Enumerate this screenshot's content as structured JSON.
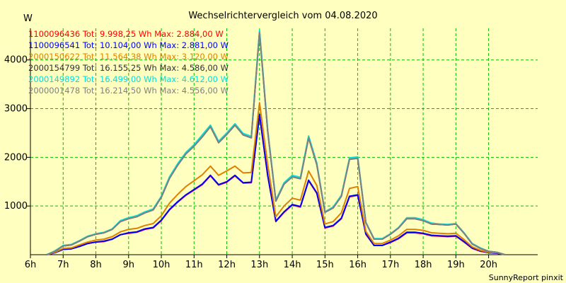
{
  "chart_data": {
    "type": "line",
    "title": "Wechselrichtervergleich vom 04.08.2020",
    "ylabel": "W",
    "xlabel": "",
    "footer": "SunnyReport pinxit",
    "ylim": [
      0,
      4650
    ],
    "xlim": [
      6,
      21.5
    ],
    "y_ticks": [
      1000,
      2000,
      3000,
      4000
    ],
    "x_ticks": [
      {
        "value": 6,
        "label": "6h"
      },
      {
        "value": 7,
        "label": "7h"
      },
      {
        "value": 8,
        "label": "8h"
      },
      {
        "value": 9,
        "label": "9h"
      },
      {
        "value": 10,
        "label": "10h"
      },
      {
        "value": 11,
        "label": "11h"
      },
      {
        "value": 12,
        "label": "12h"
      },
      {
        "value": 13,
        "label": "13h"
      },
      {
        "value": 14,
        "label": "14h"
      },
      {
        "value": 15,
        "label": "15h"
      },
      {
        "value": 16,
        "label": "16h"
      },
      {
        "value": 17,
        "label": "17h"
      },
      {
        "value": 18,
        "label": "18h"
      },
      {
        "value": 19,
        "label": "19h"
      },
      {
        "value": 20,
        "label": "20h"
      }
    ],
    "grid": true,
    "legend_position": "top-left",
    "x": [
      6.5,
      6.75,
      7,
      7.25,
      7.5,
      7.75,
      8,
      8.25,
      8.5,
      8.75,
      9,
      9.25,
      9.5,
      9.75,
      10,
      10.25,
      10.5,
      10.75,
      11,
      11.25,
      11.5,
      11.75,
      12,
      12.25,
      12.5,
      12.75,
      13,
      13.25,
      13.5,
      13.75,
      14,
      14.25,
      14.5,
      14.75,
      15,
      15.25,
      15.5,
      15.75,
      16,
      16.25,
      16.5,
      16.75,
      17,
      17.25,
      17.5,
      17.75,
      18,
      18.25,
      18.5,
      18.75,
      19,
      19.25,
      19.5,
      19.75,
      20,
      20.25,
      20.5
    ],
    "series": [
      {
        "name": "1100096436",
        "label": "1100096436 Tot: 9.998,25 Wh Max: 2.884,00 W",
        "color": "#ff0000",
        "values": [
          0,
          40,
          110,
          120,
          170,
          230,
          260,
          270,
          320,
          410,
          440,
          460,
          520,
          550,
          700,
          920,
          1080,
          1220,
          1330,
          1440,
          1620,
          1430,
          1490,
          1620,
          1470,
          1480,
          2860,
          1620,
          680,
          870,
          1020,
          980,
          1520,
          1260,
          550,
          590,
          740,
          1190,
          1220,
          420,
          190,
          190,
          250,
          330,
          450,
          450,
          430,
          390,
          380,
          370,
          380,
          260,
          130,
          70,
          40,
          30,
          0
        ]
      },
      {
        "name": "1100096541",
        "label": "1100096541 Tot: 10.104,00 Wh Max: 2.881,00 W",
        "color": "#0000ff",
        "values": [
          0,
          40,
          110,
          120,
          170,
          230,
          260,
          280,
          320,
          410,
          450,
          470,
          530,
          560,
          710,
          930,
          1090,
          1230,
          1340,
          1450,
          1630,
          1440,
          1500,
          1630,
          1480,
          1490,
          2880,
          1630,
          690,
          880,
          1030,
          990,
          1530,
          1270,
          560,
          600,
          750,
          1200,
          1230,
          430,
          190,
          190,
          260,
          340,
          460,
          460,
          440,
          400,
          390,
          380,
          390,
          270,
          140,
          80,
          40,
          30,
          0
        ]
      },
      {
        "name": "2000150622",
        "label": "2000150622 Tot: 11.564,38 Wh Max: 3.120,00 W",
        "color": "#e08000",
        "values": [
          0,
          50,
          130,
          140,
          200,
          260,
          300,
          320,
          370,
          470,
          520,
          540,
          600,
          640,
          800,
          1060,
          1240,
          1400,
          1520,
          1640,
          1820,
          1630,
          1720,
          1820,
          1680,
          1690,
          3120,
          1850,
          780,
          1000,
          1160,
          1120,
          1720,
          1420,
          630,
          680,
          860,
          1360,
          1400,
          480,
          230,
          230,
          300,
          390,
          520,
          520,
          500,
          450,
          440,
          430,
          440,
          310,
          160,
          90,
          50,
          40,
          0
        ]
      },
      {
        "name": "2000154799",
        "label": "2000154799 Tot: 16.155,25 Wh Max: 4.586,00 W",
        "color": "#303030",
        "values": [
          0,
          70,
          180,
          200,
          280,
          370,
          420,
          450,
          520,
          680,
          740,
          780,
          860,
          920,
          1180,
          1570,
          1840,
          2070,
          2230,
          2420,
          2630,
          2300,
          2470,
          2660,
          2460,
          2400,
          4580,
          2530,
          1100,
          1450,
          1600,
          1560,
          2400,
          1850,
          870,
          960,
          1200,
          1960,
          1980,
          660,
          320,
          320,
          420,
          550,
          740,
          740,
          700,
          630,
          620,
          610,
          630,
          440,
          220,
          130,
          70,
          50,
          0
        ]
      },
      {
        "name": "2000149892",
        "label": "2000149892 Tot: 16.499,00 Wh Max: 4.612,00 W",
        "color": "#00e0e0",
        "values": [
          0,
          80,
          190,
          210,
          290,
          380,
          430,
          460,
          530,
          700,
          760,
          800,
          880,
          940,
          1200,
          1600,
          1870,
          2100,
          2260,
          2460,
          2660,
          2330,
          2500,
          2690,
          2490,
          2430,
          4610,
          2560,
          1120,
          1480,
          1630,
          1590,
          2440,
          1880,
          880,
          980,
          1220,
          1990,
          2010,
          670,
          330,
          330,
          430,
          560,
          760,
          760,
          720,
          650,
          630,
          620,
          640,
          450,
          230,
          140,
          70,
          50,
          0
        ]
      },
      {
        "name": "2000001478",
        "label": "2000001478 Tot: 16.214,50 Wh Max: 4.556,00 W",
        "color": "#808080",
        "values": [
          0,
          70,
          180,
          200,
          280,
          370,
          420,
          450,
          520,
          680,
          740,
          780,
          860,
          920,
          1180,
          1570,
          1840,
          2070,
          2230,
          2420,
          2630,
          2300,
          2470,
          2660,
          2460,
          2400,
          4560,
          2530,
          1100,
          1450,
          1600,
          1560,
          2400,
          1850,
          870,
          960,
          1200,
          1960,
          1980,
          660,
          320,
          320,
          420,
          550,
          740,
          740,
          700,
          630,
          620,
          610,
          630,
          440,
          220,
          130,
          70,
          50,
          0
        ]
      }
    ]
  }
}
